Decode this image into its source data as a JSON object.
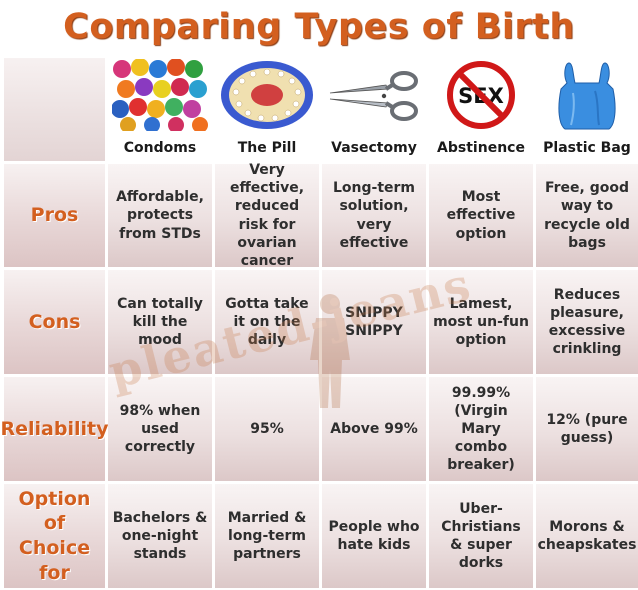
{
  "title": "Comparing Types of Birth Control",
  "columns": [
    {
      "label": "Condoms",
      "icon": "condoms-photo"
    },
    {
      "label": "The Pill",
      "icon": "pill-pack-photo"
    },
    {
      "label": "Vasectomy",
      "icon": "scissors-photo"
    },
    {
      "label": "Abstinence",
      "icon": "no-sex-sign"
    },
    {
      "label": "Plastic Bag",
      "icon": "plastic-bag-photo"
    }
  ],
  "rows": [
    {
      "label": "Pros",
      "cells": [
        "Affordable, protects from STDs",
        "Very effective, reduced risk for ovarian cancer",
        "Long-term solution, very effective",
        "Most effective option",
        "Free, good way to recycle old bags"
      ]
    },
    {
      "label": "Cons",
      "cells": [
        "Can totally kill the mood",
        "Gotta take it on the daily",
        "SNIPPY SNIPPY",
        "Lamest, most un-fun option",
        "Reduces pleasure, excessive crinkling"
      ]
    },
    {
      "label": "Reliability",
      "cells": [
        "98% when used correctly",
        "95%",
        "Above 99%",
        "99.99% (Virgin Mary combo breaker)",
        "12% (pure guess)"
      ]
    },
    {
      "label": "Option of Choice for",
      "cells": [
        "Bachelors & one-night stands",
        "Married & long-term partners",
        "People who hate kids",
        "Uber-Christians & super dorks",
        "Morons & cheapskates"
      ]
    }
  ],
  "sign_text": "SEX",
  "watermark": "pleated-jeans",
  "colors": {
    "accent": "#d35f1f",
    "cell_bg": "#ece0e0",
    "text": "#2e2e2e"
  }
}
